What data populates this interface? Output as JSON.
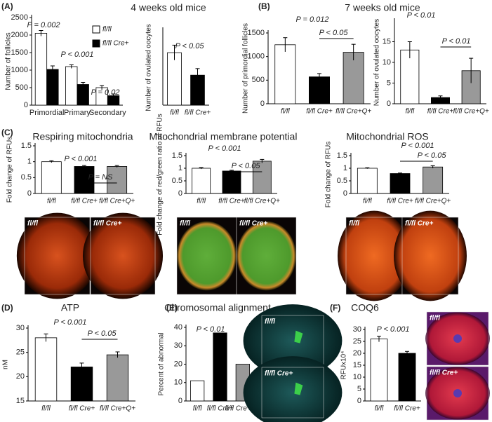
{
  "panel_labels": [
    "(A)",
    "(B)",
    "(C)",
    "(D)",
    "(E)",
    "(F)"
  ],
  "section_titles": [
    "4 weeks old mice",
    "7 weeks old mice"
  ],
  "images": [
    {
      "labels": [
        "fl/fl",
        "fl/fl Cre+"
      ]
    },
    {
      "labels": [
        "fl/fl",
        "fl/fl Cre+"
      ]
    },
    {
      "labels": [
        "fl/fl",
        "fl/fl Cre+"
      ]
    },
    {
      "labels": [
        "fl/fl",
        "fl/fl Cre+"
      ]
    },
    {
      "labels": [
        "fl/fl",
        "fl/fl Cre+"
      ]
    }
  ],
  "chart_data": [
    {
      "type": "grouped_bar",
      "ylabel": "Number of follicles",
      "categories": [
        "Primordial",
        "Primary",
        "Secondary"
      ],
      "series": [
        {
          "name": "fl/fl",
          "color": "#ffffff",
          "values": [
            2050,
            1100,
            500
          ],
          "errors": [
            80,
            50,
            60
          ]
        },
        {
          "name": "fl/fl Cre+",
          "color": "#000000",
          "values": [
            1020,
            590,
            270
          ],
          "errors": [
            100,
            60,
            50
          ]
        }
      ],
      "ylim": [
        0,
        2500
      ],
      "yticks": [
        0,
        500,
        1000,
        1500,
        2000,
        2500
      ],
      "annotations": [
        "P = 0.002",
        "P < 0.001",
        "P = 0.02"
      ],
      "legend": "upper right"
    },
    {
      "type": "bar",
      "ylabel": "Number of ovulated oocytes",
      "categories": [
        "fl/fl",
        "fl/fl Cre+"
      ],
      "values": [
        28,
        16
      ],
      "errors": [
        4,
        3.5
      ],
      "colors": [
        "#ffffff",
        "#000000"
      ],
      "ylim": [
        0,
        40
      ],
      "annotations": [
        "P < 0.05"
      ]
    },
    {
      "type": "bar",
      "ylabel": "Number of primordial follicles",
      "categories": [
        "fl/fl",
        "fl/fl Cre+",
        "fl/fl Cre+Q+"
      ],
      "values": [
        1250,
        570,
        1090
      ],
      "errors": [
        150,
        70,
        170
      ],
      "colors": [
        "#ffffff",
        "#000000",
        "#999999"
      ],
      "ylim": [
        0,
        1500
      ],
      "yticks": [
        0,
        500,
        1000,
        1500
      ],
      "annotations": [
        "P = 0.012",
        "P < 0.05"
      ]
    },
    {
      "type": "bar",
      "ylabel": "Number of ovulated oocytes",
      "categories": [
        "fl/fl",
        "fl/fl Cre+",
        "fl/fl Cre+Q+"
      ],
      "values": [
        13,
        1.5,
        8
      ],
      "errors": [
        2,
        0.4,
        3
      ],
      "colors": [
        "#ffffff",
        "#000000",
        "#999999"
      ],
      "ylim": [
        0,
        20
      ],
      "yticks": [
        0,
        5,
        10,
        15
      ],
      "annotations": [
        "P < 0.01",
        "P < 0.01"
      ]
    },
    {
      "type": "bar",
      "title": "Respiring mitochondria",
      "ylabel": "Fold change of RFUs",
      "categories": [
        "fl/fl",
        "fl/fl Cre+",
        "fl/fl Cre+Q+"
      ],
      "values": [
        1,
        0.85,
        0.85
      ],
      "errors": [
        0.03,
        0.03,
        0.03
      ],
      "colors": [
        "#ffffff",
        "#000000",
        "#999999"
      ],
      "ylim": [
        0,
        1.5
      ],
      "yticks": [
        0,
        0.5,
        1,
        1.5
      ],
      "annotations": [
        "P < 0.001",
        "P = NS"
      ]
    },
    {
      "type": "bar",
      "title": "Mitochondrial membrane potential",
      "ylabel": "Fold change of red/green ratio of RFUs",
      "categories": [
        "fl/fl",
        "fl/fl Cre+",
        "fl/fl Cre+Q+"
      ],
      "values": [
        1,
        0.89,
        1.28
      ],
      "errors": [
        0.03,
        0.03,
        0.07
      ],
      "colors": [
        "#ffffff",
        "#000000",
        "#999999"
      ],
      "ylim": [
        0,
        1.5
      ],
      "yticks": [
        0,
        0.5,
        1,
        1.5
      ],
      "annotations": [
        "P < 0.001",
        "P < 0.05"
      ]
    },
    {
      "type": "bar",
      "title": "Mitochondrial ROS",
      "ylabel": "Fold change of RFUs",
      "categories": [
        "fl/fl",
        "fl/fl Cre+",
        "fl/fl Cre+Q+"
      ],
      "values": [
        1,
        0.79,
        1.05
      ],
      "errors": [
        0.02,
        0.02,
        0.05
      ],
      "colors": [
        "#ffffff",
        "#000000",
        "#999999"
      ],
      "ylim": [
        0,
        1.5
      ],
      "yticks": [
        0,
        0.5,
        1,
        1.5
      ],
      "annotations": [
        "P < 0.001",
        "P < 0.05"
      ]
    },
    {
      "type": "bar",
      "title": "ATP",
      "ylabel": "nM",
      "categories": [
        "fl/fl",
        "fl/fl Cre+",
        "fl/fl Cre+Q+"
      ],
      "values": [
        28,
        22,
        24.5
      ],
      "errors": [
        0.8,
        0.8,
        0.6
      ],
      "colors": [
        "#ffffff",
        "#000000",
        "#999999"
      ],
      "ylim": [
        15,
        30
      ],
      "yticks": [
        15,
        20,
        25,
        30
      ],
      "annotations": [
        "P < 0.001",
        "P < 0.05"
      ]
    },
    {
      "type": "bar",
      "title": "Chromosomal alignment",
      "ylabel": "Percent of abnormal",
      "categories": [
        "fl/fl",
        "fl/fl Cre+",
        "fl/fl Cre+Q+"
      ],
      "values": [
        11,
        37,
        20
      ],
      "colors": [
        "#ffffff",
        "#000000",
        "#999999"
      ],
      "ylim": [
        0,
        40
      ],
      "yticks": [
        0,
        10,
        20,
        30,
        40
      ],
      "annotations": [
        "P < 0.01"
      ]
    },
    {
      "type": "bar",
      "title": "COQ6",
      "ylabel": "RFUx10⁴",
      "categories": [
        "fl/fl",
        "fl/fl Cre+"
      ],
      "values": [
        26,
        20
      ],
      "errors": [
        1.2,
        0.8
      ],
      "colors": [
        "#ffffff",
        "#000000"
      ],
      "ylim": [
        0,
        30
      ],
      "yticks": [
        0,
        5,
        10,
        15,
        20,
        25,
        30
      ],
      "annotations": [
        "P < 0.001"
      ]
    }
  ]
}
